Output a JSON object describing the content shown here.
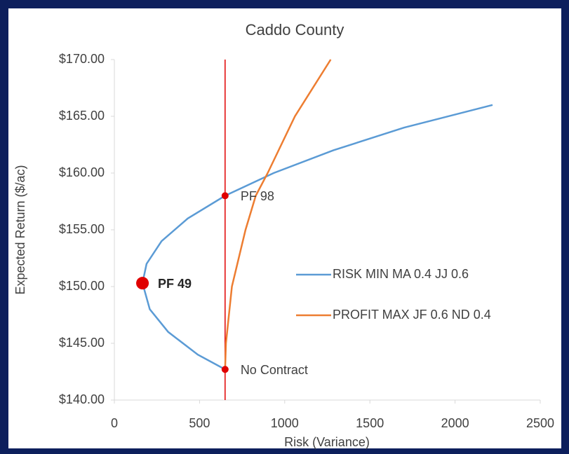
{
  "chart_data": {
    "type": "line",
    "title": "Caddo County",
    "xlabel": "Risk (Variance)",
    "ylabel": "Expected Return ($/ac)",
    "xlim": [
      0,
      2500
    ],
    "xticks": [
      0,
      500,
      1000,
      1500,
      2000,
      2500
    ],
    "ylim": [
      140,
      170
    ],
    "yticks": [
      {
        "value": 140,
        "label": "$140.00"
      },
      {
        "value": 145,
        "label": "$145.00"
      },
      {
        "value": 150,
        "label": "$150.00"
      },
      {
        "value": 155,
        "label": "$155.00"
      },
      {
        "value": 160,
        "label": "$160.00"
      },
      {
        "value": 165,
        "label": "$165.00"
      },
      {
        "value": 170,
        "label": "$170.00"
      }
    ],
    "legend": "right",
    "series": [
      {
        "name": "RISK MIN MA 0.4 JJ 0.6",
        "color": "#5b9bd5",
        "x": [
          650,
          490,
          316,
          208,
          165,
          189,
          277,
          431,
          650,
          935,
          1285,
          1700,
          2220
        ],
        "values": [
          142.7,
          144,
          146,
          148,
          150.3,
          152,
          154,
          156,
          158,
          160,
          162,
          164,
          166
        ]
      },
      {
        "name": "PROFIT MAX JF 0.6 ND 0.4",
        "color": "#ed7d31",
        "x": [
          650,
          655,
          690,
          770,
          830,
          900,
          1060,
          1270
        ],
        "values": [
          142.7,
          145,
          150,
          155,
          158,
          160,
          165,
          170
        ]
      }
    ],
    "vline": {
      "x": 650,
      "color": "#e00000"
    },
    "points": [
      {
        "label": "PF 98",
        "x": 650,
        "value": 158,
        "bold": false
      },
      {
        "label": "PF 49",
        "x": 165,
        "value": 150.3,
        "bold": true
      },
      {
        "label": "No Contract",
        "x": 650,
        "value": 142.7,
        "bold": false
      }
    ]
  }
}
